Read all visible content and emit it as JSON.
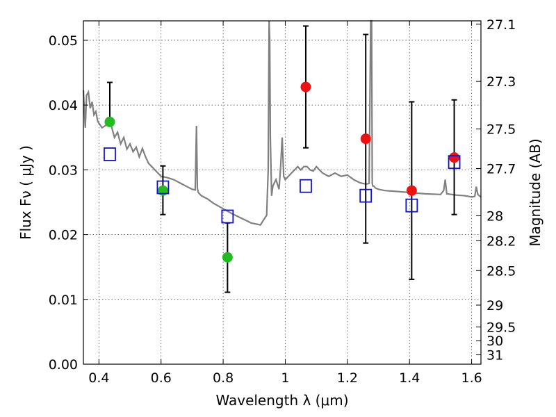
{
  "chart_data": {
    "type": "scatter",
    "xlabel": "Wavelength  λ (μm)",
    "ylabel": "Flux  Fν  ( μJy )",
    "y2label": "Magnitude (AB)",
    "xlim": [
      0.35,
      1.63
    ],
    "ylim": [
      0.0,
      0.053
    ],
    "grid": true,
    "x_ticks": [
      0.4,
      0.6,
      0.8,
      1.0,
      1.2,
      1.4,
      1.6
    ],
    "x_tick_labels": [
      "0.4",
      "0.6",
      "0.8",
      "1",
      "1.2",
      "1.4",
      "1.6"
    ],
    "y_ticks": [
      0.0,
      0.01,
      0.02,
      0.03,
      0.04,
      0.05
    ],
    "y_tick_labels": [
      "0.00",
      "0.01",
      "0.02",
      "0.03",
      "0.04",
      "0.05"
    ],
    "y2_ticks_mag": [
      27.1,
      27.3,
      27.5,
      27.7,
      28,
      28.2,
      28.5,
      29,
      29.5,
      30,
      31
    ],
    "y2_tick_labels": [
      "27.1",
      "27.3",
      "27.5",
      "27.7",
      "28",
      "28.2",
      "28.5",
      "29",
      "29.5",
      "30",
      "31"
    ],
    "series": [
      {
        "marker": "circle",
        "color": "#22bb22",
        "points": [
          {
            "x": 0.435,
            "y": 0.0374,
            "err_low": null,
            "err_high": 0.0435
          },
          {
            "x": 0.606,
            "y": 0.0268,
            "err_low": 0.0231,
            "err_high": 0.0306
          },
          {
            "x": 0.814,
            "y": 0.0165,
            "err_low": 0.0111,
            "err_high": 0.0218
          }
        ]
      },
      {
        "marker": "circle",
        "color": "#ee1111",
        "points": [
          {
            "x": 1.066,
            "y": 0.0428,
            "err_low": 0.0334,
            "err_high": 0.0522
          },
          {
            "x": 1.259,
            "y": 0.0348,
            "err_low": 0.0187,
            "err_high": 0.0509
          },
          {
            "x": 1.407,
            "y": 0.0268,
            "err_low": 0.0131,
            "err_high": 0.0405
          },
          {
            "x": 1.544,
            "y": 0.0319,
            "err_low": 0.0231,
            "err_high": 0.0408
          }
        ]
      },
      {
        "marker": "square",
        "color": "#1111cc",
        "points": [
          {
            "x": 0.435,
            "y": 0.0324
          },
          {
            "x": 0.606,
            "y": 0.0273
          },
          {
            "x": 0.814,
            "y": 0.0228
          },
          {
            "x": 1.066,
            "y": 0.0275
          },
          {
            "x": 1.259,
            "y": 0.026
          },
          {
            "x": 1.407,
            "y": 0.0245
          },
          {
            "x": 1.544,
            "y": 0.0312
          }
        ]
      }
    ],
    "model_curve": {
      "color": "#808080",
      "x": [
        0.35,
        0.356,
        0.36,
        0.366,
        0.372,
        0.378,
        0.384,
        0.39,
        0.396,
        0.4,
        0.41,
        0.42,
        0.43,
        0.44,
        0.45,
        0.46,
        0.47,
        0.48,
        0.49,
        0.5,
        0.51,
        0.52,
        0.53,
        0.54,
        0.55,
        0.56,
        0.57,
        0.58,
        0.59,
        0.6,
        0.62,
        0.64,
        0.66,
        0.68,
        0.7,
        0.71,
        0.714,
        0.717,
        0.72,
        0.73,
        0.75,
        0.77,
        0.8,
        0.83,
        0.86,
        0.89,
        0.92,
        0.94,
        0.945,
        0.948,
        0.95,
        0.952,
        0.956,
        0.96,
        0.97,
        0.98,
        0.985,
        0.99,
        0.995,
        1.0,
        1.01,
        1.02,
        1.03,
        1.04,
        1.05,
        1.06,
        1.07,
        1.08,
        1.09,
        1.1,
        1.12,
        1.14,
        1.16,
        1.18,
        1.2,
        1.22,
        1.24,
        1.26,
        1.27,
        1.275,
        1.278,
        1.28,
        1.282,
        1.285,
        1.29,
        1.3,
        1.32,
        1.35,
        1.4,
        1.45,
        1.5,
        1.51,
        1.515,
        1.52,
        1.55,
        1.58,
        1.6,
        1.61,
        1.615,
        1.62,
        1.63
      ],
      "y": [
        0.0423,
        0.0365,
        0.0415,
        0.042,
        0.0395,
        0.0405,
        0.0385,
        0.039,
        0.0375,
        0.0372,
        0.0365,
        0.0368,
        0.0372,
        0.0368,
        0.035,
        0.0358,
        0.034,
        0.035,
        0.0332,
        0.034,
        0.0328,
        0.0335,
        0.032,
        0.0333,
        0.032,
        0.031,
        0.0305,
        0.03,
        0.0295,
        0.029,
        0.0288,
        0.0285,
        0.028,
        0.0275,
        0.027,
        0.0269,
        0.0368,
        0.0272,
        0.0265,
        0.026,
        0.0255,
        0.0248,
        0.024,
        0.0232,
        0.0225,
        0.0218,
        0.0215,
        0.023,
        0.03,
        0.053,
        0.05,
        0.035,
        0.026,
        0.0275,
        0.0285,
        0.027,
        0.0305,
        0.035,
        0.029,
        0.0285,
        0.029,
        0.0295,
        0.03,
        0.0305,
        0.03,
        0.0305,
        0.0305,
        0.03,
        0.0298,
        0.0305,
        0.0295,
        0.029,
        0.0295,
        0.029,
        0.0292,
        0.0285,
        0.028,
        0.0278,
        0.0279,
        0.053,
        0.053,
        0.0279,
        0.0275,
        0.0275,
        0.0272,
        0.027,
        0.0268,
        0.0267,
        0.0265,
        0.0263,
        0.0262,
        0.0268,
        0.0285,
        0.0263,
        0.0261,
        0.026,
        0.0258,
        0.0259,
        0.0274,
        0.0262,
        0.0258
      ]
    }
  }
}
